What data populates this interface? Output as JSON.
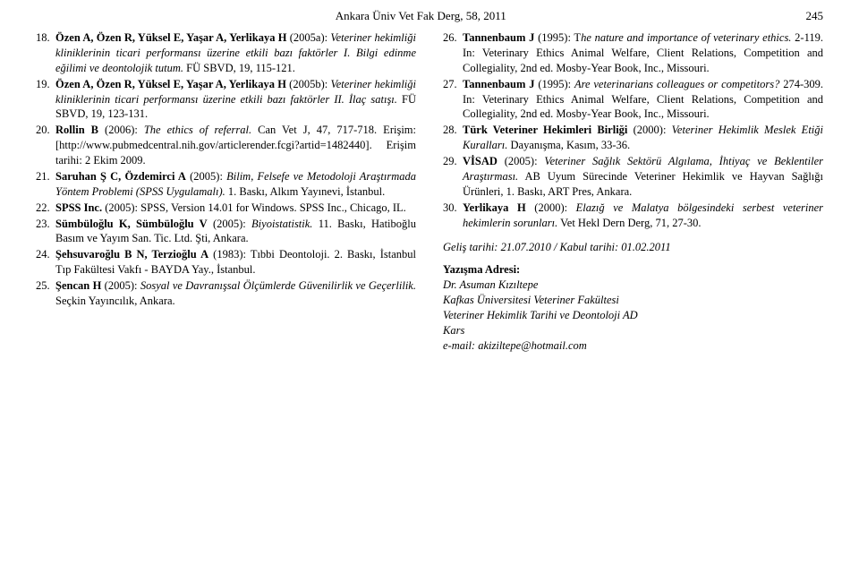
{
  "header": {
    "title": "Ankara Üniv Vet Fak Derg, 58, 2011",
    "page": "245"
  },
  "left_refs": [
    {
      "n": "18.",
      "auth": "Özen A, Özen R, Yüksel E, Yaşar A, Yerlikaya H",
      "rest": " (2005a): ",
      "ital": "Veteriner hekimliği kliniklerinin ticari performansı üzerine etkili bazı faktörler I. Bilgi edinme eğilimi ve deontolojik tutum.",
      "tail": " FÜ SBVD, 19, 115-121."
    },
    {
      "n": "19.",
      "auth": "Özen A, Özen R, Yüksel E, Yaşar A, Yerlikaya H",
      "rest": " (2005b): ",
      "ital": "Veteriner hekimliği kliniklerinin ticari performansı üzerine etkili bazı faktörler II. İlaç satışı.",
      "tail": " FÜ SBVD, 19, 123-131."
    },
    {
      "n": "20.",
      "auth": "Rollin B",
      "rest": " (2006): ",
      "ital": "The ethics of referral.",
      "tail": " Can Vet J, 47, 717-718. Erişim: [http://www.pubmedcentral.nih.gov/articlerender.fcgi?artid=1482440]. Erişim tarihi: 2 Ekim 2009."
    },
    {
      "n": "21.",
      "auth": "Saruhan Ş C, Özdemirci A",
      "rest": " (2005): ",
      "ital": "Bilim, Felsefe ve Metodoloji Araştırmada Yöntem Problemi (SPSS Uygulamalı).",
      "tail": " 1. Baskı, Alkım Yayınevi, İstanbul."
    },
    {
      "n": "22.",
      "auth": "SPSS Inc.",
      "rest": " (2005): ",
      "ital": "",
      "tail": "SPSS, Version 14.01 for Windows. SPSS Inc., Chicago, IL."
    },
    {
      "n": "23.",
      "auth": "Sümbüloğlu K, Sümbüloğlu V",
      "rest": " (2005): ",
      "ital": "Biyoistatistik.",
      "tail": " 11. Baskı, Hatiboğlu Basım ve Yayım San. Tic. Ltd. Şti, Ankara."
    },
    {
      "n": "24.",
      "auth": "Şehsuvaroğlu B N, Terzioğlu A",
      "rest": " (1983): ",
      "ital": "",
      "tail": "Tıbbi Deontoloji. 2. Baskı, İstanbul Tıp Fakültesi Vakfı - BAYDA Yay., İstanbul."
    },
    {
      "n": "25.",
      "auth": "Şencan H",
      "rest": " (2005): ",
      "ital": "Sosyal ve Davranışsal Ölçümlerde Güvenilirlik ve Geçerlilik.",
      "tail": " Seçkin Yayıncılık, Ankara."
    }
  ],
  "right_refs": [
    {
      "n": "26.",
      "auth": "Tannenbaum J",
      "rest": " (1995): T",
      "ital": "he nature and importance of veterinary ethics.",
      "tail": " 2-119. In: Veterinary Ethics Animal Welfare, Client Relations, Competition and Collegiality, 2nd ed. Mosby-Year Book, Inc., Missouri."
    },
    {
      "n": "27.",
      "auth": "Tannenbaum J",
      "rest": " (1995): ",
      "ital": "Are veterinarians colleagues or competitors?",
      "tail": " 274-309. In: Veterinary Ethics Animal Welfare, Client Relations, Competition and Collegiality, 2nd ed. Mosby-Year Book, Inc., Missouri."
    },
    {
      "n": "28.",
      "auth": "Türk Veteriner Hekimleri Birliği",
      "rest": " (2000): ",
      "ital": "Veteriner Hekimlik Meslek Etiği Kuralları.",
      "tail": " Dayanışma, Kasım, 33-36."
    },
    {
      "n": "29.",
      "auth": "VİSAD",
      "rest": " (2005): ",
      "ital": "Veteriner Sağlık Sektörü Algılama, İhtiyaç ve Beklentiler Araştırması.",
      "tail": " AB Uyum Sürecinde Veteriner Hekimlik ve Hayvan Sağlığı Ürünleri, 1. Baskı, ART Pres, Ankara."
    },
    {
      "n": "30.",
      "auth": "Yerlikaya H",
      "rest": " (2000): ",
      "ital": "Elazığ ve Malatya bölgesindeki serbest veteriner hekimlerin sorunları.",
      "tail": " Vet Hekl Dern Derg, 71, 27-30."
    }
  ],
  "dates": "Geliş tarihi: 21.07.2010 / Kabul tarihi: 01.02.2011",
  "addr": {
    "heading": "Yazışma Adresi:",
    "lines": [
      "Dr. Asuman Kızıltepe",
      "Kafkas Üniversitesi Veteriner Fakültesi",
      "Veteriner Hekimlik Tarihi ve Deontoloji AD",
      "Kars",
      "e-mail: akiziltepe@hotmail.com"
    ]
  }
}
